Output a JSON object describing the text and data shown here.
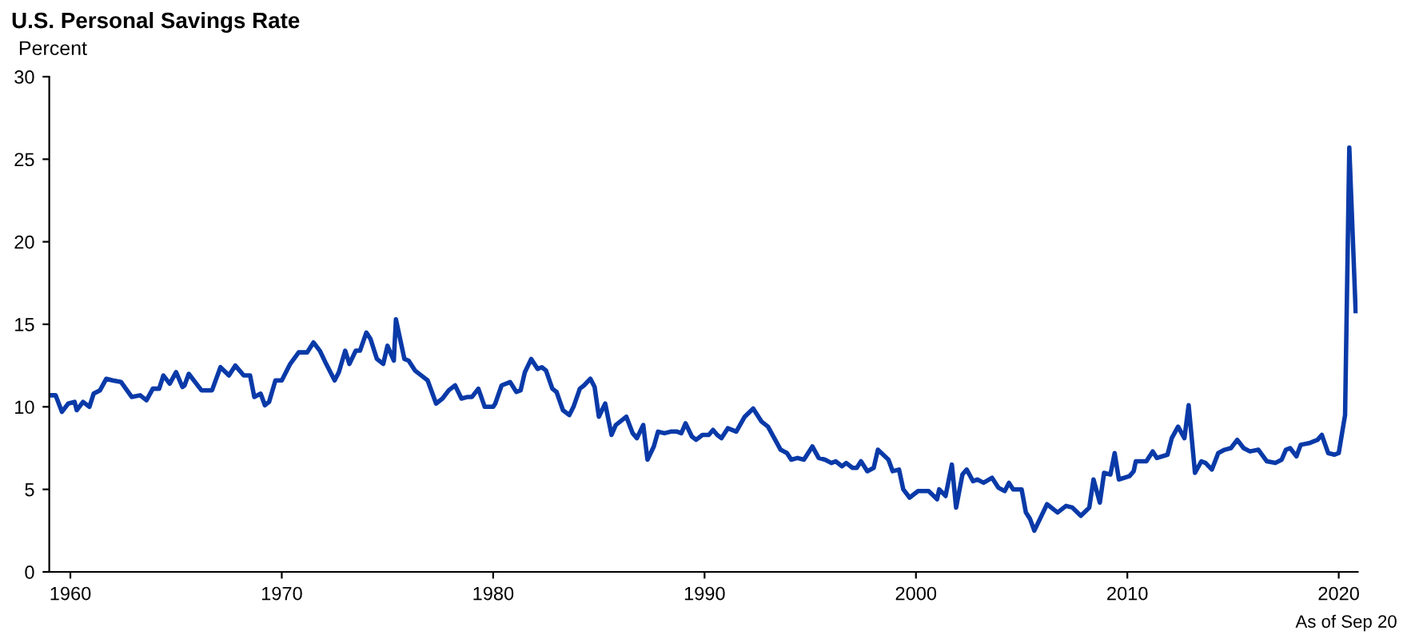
{
  "chart_data": {
    "type": "line",
    "title": "U.S. Personal Savings Rate",
    "ylabel": "Percent",
    "annotations": [
      "As of Sep 20"
    ],
    "x": [
      1959.1,
      1959.3,
      1959.6,
      1959.9,
      1960.2,
      1960.3,
      1960.6,
      1960.9,
      1961.1,
      1961.4,
      1961.7,
      1962.0,
      1962.4,
      1962.9,
      1963.3,
      1963.6,
      1963.9,
      1964.2,
      1964.4,
      1964.7,
      1965.0,
      1965.3,
      1965.4,
      1965.6,
      1966.2,
      1966.7,
      1967.1,
      1967.5,
      1967.8,
      1968.2,
      1968.5,
      1968.7,
      1969.0,
      1969.2,
      1969.4,
      1969.7,
      1970.0,
      1970.4,
      1970.8,
      1971.2,
      1971.5,
      1971.8,
      1972.1,
      1972.5,
      1972.7,
      1973.0,
      1973.2,
      1973.5,
      1973.7,
      1974.0,
      1974.2,
      1974.5,
      1974.8,
      1975.0,
      1975.3,
      1975.4,
      1975.8,
      1976.0,
      1976.3,
      1976.7,
      1976.9,
      1977.3,
      1977.6,
      1977.9,
      1978.2,
      1978.5,
      1978.8,
      1979.0,
      1979.3,
      1979.6,
      1980.0,
      1980.1,
      1980.4,
      1980.8,
      1981.1,
      1981.3,
      1981.5,
      1981.8,
      1982.1,
      1982.3,
      1982.5,
      1982.8,
      1983.0,
      1983.3,
      1983.6,
      1983.8,
      1984.1,
      1984.3,
      1984.6,
      1984.8,
      1985.0,
      1985.3,
      1985.6,
      1985.8,
      1986.1,
      1986.3,
      1986.6,
      1986.8,
      1987.1,
      1987.3,
      1987.6,
      1987.8,
      1988.1,
      1988.4,
      1988.7,
      1988.9,
      1989.1,
      1989.4,
      1989.6,
      1989.9,
      1990.2,
      1990.4,
      1990.6,
      1990.8,
      1991.1,
      1991.5,
      1991.9,
      1992.3,
      1992.7,
      1993.0,
      1993.3,
      1993.6,
      1993.9,
      1994.1,
      1994.4,
      1994.7,
      1995.1,
      1995.4,
      1995.7,
      1996.0,
      1996.2,
      1996.5,
      1996.7,
      1997.0,
      1997.2,
      1997.4,
      1997.7,
      1998.0,
      1998.2,
      1998.7,
      1998.9,
      1999.2,
      1999.4,
      1999.7,
      2000.1,
      2000.6,
      2001.0,
      2001.1,
      2001.4,
      2001.7,
      2001.9,
      2002.2,
      2002.4,
      2002.7,
      2002.9,
      2003.2,
      2003.6,
      2003.9,
      2004.2,
      2004.4,
      2004.6,
      2005.0,
      2005.2,
      2005.4,
      2005.6,
      2006.2,
      2006.7,
      2007.1,
      2007.4,
      2007.8,
      2008.2,
      2008.4,
      2008.7,
      2008.9,
      2009.2,
      2009.4,
      2009.6,
      2010.1,
      2010.3,
      2010.4,
      2010.9,
      2011.2,
      2011.4,
      2011.9,
      2012.1,
      2012.4,
      2012.7,
      2012.9,
      2013.2,
      2013.5,
      2013.7,
      2014.0,
      2014.3,
      2014.6,
      2014.9,
      2015.2,
      2015.5,
      2015.8,
      2016.2,
      2016.6,
      2017.0,
      2017.3,
      2017.5,
      2017.7,
      2018.0,
      2018.2,
      2018.6,
      2019.0,
      2019.2,
      2019.5,
      2019.8,
      2020.0,
      2020.3,
      2020.5,
      2020.8
    ],
    "series": [
      {
        "color": "#0a3aa8",
        "values": [
          10.7,
          10.7,
          9.7,
          10.2,
          10.3,
          9.8,
          10.3,
          10.0,
          10.8,
          11.0,
          11.7,
          11.6,
          11.5,
          10.6,
          10.7,
          10.4,
          11.1,
          11.1,
          11.9,
          11.4,
          12.1,
          11.2,
          11.3,
          12.0,
          11.0,
          11.0,
          12.4,
          11.9,
          12.5,
          11.9,
          11.9,
          10.6,
          10.8,
          10.1,
          10.3,
          11.6,
          11.6,
          12.6,
          13.3,
          13.3,
          13.9,
          13.4,
          12.6,
          11.6,
          12.1,
          13.4,
          12.6,
          13.4,
          13.4,
          14.5,
          14.1,
          12.9,
          12.6,
          13.7,
          12.8,
          15.3,
          12.9,
          12.8,
          12.2,
          11.8,
          11.6,
          10.2,
          10.5,
          11.0,
          11.3,
          10.5,
          10.6,
          10.6,
          11.1,
          10.0,
          10.0,
          10.2,
          11.3,
          11.5,
          10.9,
          11.0,
          12.1,
          12.9,
          12.3,
          12.4,
          12.2,
          11.1,
          10.9,
          9.8,
          9.5,
          10.0,
          11.1,
          11.3,
          11.7,
          11.2,
          9.4,
          10.2,
          8.3,
          8.9,
          9.2,
          9.4,
          8.4,
          8.1,
          8.9,
          6.8,
          7.6,
          8.5,
          8.4,
          8.5,
          8.5,
          8.4,
          9.0,
          8.2,
          8.0,
          8.3,
          8.3,
          8.6,
          8.3,
          8.1,
          8.7,
          8.5,
          9.4,
          9.9,
          9.1,
          8.8,
          8.1,
          7.4,
          7.2,
          6.8,
          6.9,
          6.8,
          7.6,
          6.9,
          6.8,
          6.6,
          6.7,
          6.4,
          6.6,
          6.3,
          6.3,
          6.7,
          6.1,
          6.3,
          7.4,
          6.8,
          6.1,
          6.2,
          5.0,
          4.5,
          4.9,
          4.9,
          4.4,
          5.0,
          4.6,
          6.5,
          3.9,
          5.9,
          6.2,
          5.5,
          5.6,
          5.4,
          5.7,
          5.1,
          4.9,
          5.4,
          5.0,
          5.0,
          3.6,
          3.2,
          2.5,
          4.1,
          3.6,
          4.0,
          3.9,
          3.4,
          3.9,
          5.6,
          4.2,
          6.0,
          5.9,
          7.2,
          5.6,
          5.8,
          6.1,
          6.7,
          6.7,
          7.3,
          6.9,
          7.1,
          8.1,
          8.8,
          8.1,
          10.1,
          6.0,
          6.7,
          6.6,
          6.2,
          7.2,
          7.4,
          7.5,
          8.0,
          7.5,
          7.3,
          7.4,
          6.7,
          6.6,
          6.8,
          7.4,
          7.5,
          7.0,
          7.7,
          7.8,
          8.0,
          8.3,
          7.2,
          7.1,
          7.2,
          9.5,
          25.7,
          15.8
        ]
      }
    ],
    "xlim": [
      1959,
      2020.9
    ],
    "xticks": [
      1960,
      1970,
      1980,
      1990,
      2000,
      2010,
      2020
    ],
    "ylim": [
      0,
      30
    ],
    "yticks": [
      0,
      5,
      10,
      15,
      20,
      25,
      30
    ],
    "grid": false,
    "marker": "none",
    "line_style": "solid"
  }
}
